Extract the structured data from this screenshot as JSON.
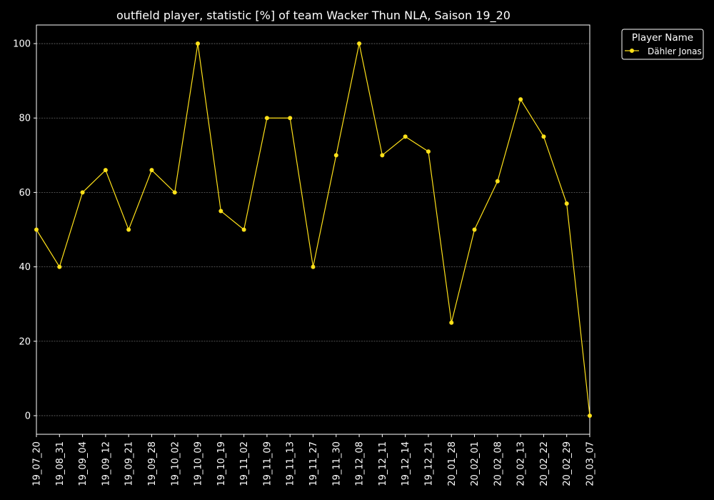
{
  "colors": {
    "background": "#000000",
    "axis": "#ffffff",
    "grid": "#666666",
    "series": "#ffe119"
  },
  "chart_data": {
    "type": "line",
    "title": "outfield player, statistic [%] of team Wacker Thun NLA, Saison 19_20",
    "xlabel": "",
    "ylabel": "",
    "ylim": [
      -5,
      105
    ],
    "yticks": [
      0,
      20,
      40,
      60,
      80,
      100
    ],
    "grid": true,
    "legend": {
      "title": "Player Name",
      "placement": "outside-top-right"
    },
    "categories": [
      "19_07_20",
      "19_08_31",
      "19_09_04",
      "19_09_12",
      "19_09_21",
      "19_09_28",
      "19_10_02",
      "19_10_09",
      "19_10_19",
      "19_11_02",
      "19_11_09",
      "19_11_13",
      "19_11_27",
      "19_11_30",
      "19_12_08",
      "19_12_11",
      "19_12_14",
      "19_12_21",
      "20_01_28",
      "20_02_01",
      "20_02_08",
      "20_02_13",
      "20_02_22",
      "20_02_29",
      "20_03_07"
    ],
    "series": [
      {
        "name": "Dähler Jonas",
        "values": [
          50,
          40,
          60,
          66,
          50,
          66,
          60,
          100,
          55,
          50,
          80,
          80,
          40,
          70,
          100,
          70,
          75,
          71,
          25,
          50,
          63,
          85,
          75,
          57,
          0
        ]
      }
    ]
  }
}
